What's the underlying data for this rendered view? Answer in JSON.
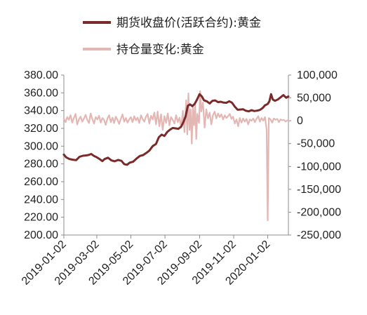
{
  "chart_data": {
    "type": "line",
    "legend_position": "top",
    "grid": false,
    "series": [
      {
        "name": "期货收盘价(活跃合约):黄金",
        "axis": "left",
        "color": "#7b2a2a",
        "points": [
          [
            "2019-01-02",
            290.5
          ],
          [
            "2019-01-06",
            287.5
          ],
          [
            "2019-01-12",
            285.5
          ],
          [
            "2019-01-18",
            284.8
          ],
          [
            "2019-01-24",
            284.2
          ],
          [
            "2019-01-30",
            288.0
          ],
          [
            "2019-02-05",
            289.2
          ],
          [
            "2019-02-10",
            289.5
          ],
          [
            "2019-02-15",
            290.0
          ],
          [
            "2019-02-20",
            291.2
          ],
          [
            "2019-02-25",
            289.0
          ],
          [
            "2019-03-02",
            287.5
          ],
          [
            "2019-03-08",
            285.0
          ],
          [
            "2019-03-12",
            283.2
          ],
          [
            "2019-03-16",
            285.5
          ],
          [
            "2019-03-22",
            287.0
          ],
          [
            "2019-03-28",
            284.0
          ],
          [
            "2019-04-03",
            283.0
          ],
          [
            "2019-04-09",
            284.5
          ],
          [
            "2019-04-15",
            283.5
          ],
          [
            "2019-04-20",
            279.8
          ],
          [
            "2019-04-25",
            279.0
          ],
          [
            "2019-04-30",
            281.5
          ],
          [
            "2019-05-06",
            282.5
          ],
          [
            "2019-05-12",
            286.0
          ],
          [
            "2019-05-18",
            289.0
          ],
          [
            "2019-05-24",
            290.0
          ],
          [
            "2019-05-30",
            292.5
          ],
          [
            "2019-06-04",
            295.0
          ],
          [
            "2019-06-10",
            300.0
          ],
          [
            "2019-06-16",
            302.5
          ],
          [
            "2019-06-21",
            310.0
          ],
          [
            "2019-06-26",
            313.0
          ],
          [
            "2019-07-01",
            311.5
          ],
          [
            "2019-07-06",
            316.0
          ],
          [
            "2019-07-11",
            318.5
          ],
          [
            "2019-07-16",
            320.5
          ],
          [
            "2019-07-21",
            320.0
          ],
          [
            "2019-07-26",
            319.5
          ],
          [
            "2019-07-31",
            322.0
          ],
          [
            "2019-08-04",
            327.0
          ],
          [
            "2019-08-08",
            333.5
          ],
          [
            "2019-08-12",
            345.5
          ],
          [
            "2019-08-16",
            347.0
          ],
          [
            "2019-08-20",
            345.0
          ],
          [
            "2019-08-24",
            347.5
          ],
          [
            "2019-08-28",
            352.0
          ],
          [
            "2019-09-02",
            358.5
          ],
          [
            "2019-09-06",
            356.0
          ],
          [
            "2019-09-10",
            351.5
          ],
          [
            "2019-09-15",
            350.5
          ],
          [
            "2019-09-20",
            348.0
          ],
          [
            "2019-09-25",
            351.0
          ],
          [
            "2019-09-30",
            351.5
          ],
          [
            "2019-10-05",
            349.5
          ],
          [
            "2019-10-10",
            350.0
          ],
          [
            "2019-10-15",
            349.0
          ],
          [
            "2019-10-20",
            348.8
          ],
          [
            "2019-10-25",
            350.5
          ],
          [
            "2019-10-30",
            349.0
          ],
          [
            "2019-11-04",
            344.5
          ],
          [
            "2019-11-09",
            341.0
          ],
          [
            "2019-11-14",
            341.2
          ],
          [
            "2019-11-19",
            341.5
          ],
          [
            "2019-11-24",
            339.8
          ],
          [
            "2019-11-29",
            339.2
          ],
          [
            "2019-12-04",
            340.5
          ],
          [
            "2019-12-09",
            339.5
          ],
          [
            "2019-12-14",
            340.0
          ],
          [
            "2019-12-19",
            340.8
          ],
          [
            "2019-12-24",
            343.0
          ],
          [
            "2019-12-28",
            346.0
          ],
          [
            "2020-01-02",
            347.5
          ],
          [
            "2020-01-05",
            350.5
          ],
          [
            "2020-01-08",
            358.5
          ],
          [
            "2020-01-11",
            352.5
          ],
          [
            "2020-01-15",
            351.0
          ],
          [
            "2020-01-20",
            352.5
          ],
          [
            "2020-01-25",
            355.0
          ],
          [
            "2020-01-30",
            357.5
          ],
          [
            "2020-02-04",
            354.5
          ],
          [
            "2020-02-08",
            356.0
          ]
        ]
      },
      {
        "name": "持仓量变化:黄金",
        "axis": "right",
        "color": "#e3b7b4",
        "points": [
          [
            "2019-01-02",
            5000
          ],
          [
            "2019-01-05",
            -3000
          ],
          [
            "2019-01-08",
            8000
          ],
          [
            "2019-01-11",
            2000
          ],
          [
            "2019-01-14",
            12000
          ],
          [
            "2019-01-17",
            -4000
          ],
          [
            "2019-01-20",
            6000
          ],
          [
            "2019-01-23",
            15000
          ],
          [
            "2019-01-26",
            -8000
          ],
          [
            "2019-01-29",
            3000
          ],
          [
            "2019-02-01",
            9000
          ],
          [
            "2019-02-04",
            -2000
          ],
          [
            "2019-02-07",
            5000
          ],
          [
            "2019-02-10",
            13000
          ],
          [
            "2019-02-13",
            2000
          ],
          [
            "2019-02-16",
            -5000
          ],
          [
            "2019-02-19",
            16000
          ],
          [
            "2019-02-22",
            4000
          ],
          [
            "2019-02-25",
            -6000
          ],
          [
            "2019-02-28",
            8000
          ],
          [
            "2019-03-03",
            3000
          ],
          [
            "2019-03-06",
            11000
          ],
          [
            "2019-03-09",
            -4000
          ],
          [
            "2019-03-12",
            6000
          ],
          [
            "2019-03-15",
            2000
          ],
          [
            "2019-03-18",
            -9000
          ],
          [
            "2019-03-21",
            5000
          ],
          [
            "2019-03-24",
            12000
          ],
          [
            "2019-03-27",
            -3000
          ],
          [
            "2019-03-30",
            7000
          ],
          [
            "2019-04-02",
            -5000
          ],
          [
            "2019-04-05",
            9000
          ],
          [
            "2019-04-08",
            2000
          ],
          [
            "2019-04-11",
            -7000
          ],
          [
            "2019-04-14",
            4000
          ],
          [
            "2019-04-17",
            14000
          ],
          [
            "2019-04-20",
            -2000
          ],
          [
            "2019-04-23",
            6000
          ],
          [
            "2019-04-26",
            -4000
          ],
          [
            "2019-04-29",
            3000
          ],
          [
            "2019-05-02",
            8000
          ],
          [
            "2019-05-05",
            -3000
          ],
          [
            "2019-05-08",
            10000
          ],
          [
            "2019-05-11",
            1000
          ],
          [
            "2019-05-14",
            7000
          ],
          [
            "2019-05-17",
            -5000
          ],
          [
            "2019-05-20",
            12000
          ],
          [
            "2019-05-23",
            4000
          ],
          [
            "2019-05-26",
            -2000
          ],
          [
            "2019-05-29",
            9000
          ],
          [
            "2019-06-01",
            15000
          ],
          [
            "2019-06-04",
            -6000
          ],
          [
            "2019-06-07",
            11000
          ],
          [
            "2019-06-10",
            3000
          ],
          [
            "2019-06-13",
            18000
          ],
          [
            "2019-06-16",
            -8000
          ],
          [
            "2019-06-19",
            20000
          ],
          [
            "2019-06-22",
            -12000
          ],
          [
            "2019-06-25",
            14000
          ],
          [
            "2019-06-28",
            -20000
          ],
          [
            "2019-07-01",
            10000
          ],
          [
            "2019-07-04",
            -5000
          ],
          [
            "2019-07-07",
            16000
          ],
          [
            "2019-07-10",
            -10000
          ],
          [
            "2019-07-13",
            8000
          ],
          [
            "2019-07-16",
            2000
          ],
          [
            "2019-07-19",
            -6000
          ],
          [
            "2019-07-22",
            12000
          ],
          [
            "2019-07-25",
            -3000
          ],
          [
            "2019-07-28",
            7000
          ],
          [
            "2019-07-31",
            -15000
          ],
          [
            "2019-08-03",
            22000
          ],
          [
            "2019-08-06",
            -25000
          ],
          [
            "2019-08-09",
            45000
          ],
          [
            "2019-08-11",
            -30000
          ],
          [
            "2019-08-13",
            60000
          ],
          [
            "2019-08-15",
            -20000
          ],
          [
            "2019-08-17",
            25000
          ],
          [
            "2019-08-19",
            -50000
          ],
          [
            "2019-08-21",
            30000
          ],
          [
            "2019-08-23",
            -10000
          ],
          [
            "2019-08-25",
            35000
          ],
          [
            "2019-08-27",
            -40000
          ],
          [
            "2019-08-29",
            15000
          ],
          [
            "2019-09-01",
            -5000
          ],
          [
            "2019-09-03",
            65000
          ],
          [
            "2019-09-05",
            20000
          ],
          [
            "2019-09-08",
            40000
          ],
          [
            "2019-09-11",
            -15000
          ],
          [
            "2019-09-14",
            25000
          ],
          [
            "2019-09-17",
            5000
          ],
          [
            "2019-09-20",
            18000
          ],
          [
            "2019-09-23",
            -8000
          ],
          [
            "2019-09-26",
            12000
          ],
          [
            "2019-09-29",
            20000
          ],
          [
            "2019-10-02",
            5000
          ],
          [
            "2019-10-05",
            16000
          ],
          [
            "2019-10-08",
            8000
          ],
          [
            "2019-10-11",
            14000
          ],
          [
            "2019-10-14",
            3000
          ],
          [
            "2019-10-17",
            12000
          ],
          [
            "2019-10-20",
            6000
          ],
          [
            "2019-10-23",
            10000
          ],
          [
            "2019-10-26",
            15000
          ],
          [
            "2019-10-29",
            4000
          ],
          [
            "2019-11-01",
            9000
          ],
          [
            "2019-11-04",
            -6000
          ],
          [
            "2019-11-07",
            3000
          ],
          [
            "2019-11-10",
            -12000
          ],
          [
            "2019-11-13",
            6000
          ],
          [
            "2019-11-16",
            -4000
          ],
          [
            "2019-11-19",
            5000
          ],
          [
            "2019-11-22",
            -2000
          ],
          [
            "2019-11-25",
            4000
          ],
          [
            "2019-11-28",
            -8000
          ],
          [
            "2019-12-01",
            3000
          ],
          [
            "2019-12-04",
            0
          ],
          [
            "2019-12-07",
            5000
          ],
          [
            "2019-12-10",
            -3000
          ],
          [
            "2019-12-13",
            4000
          ],
          [
            "2019-12-16",
            10000
          ],
          [
            "2019-12-19",
            -2000
          ],
          [
            "2019-12-22",
            6000
          ],
          [
            "2019-12-25",
            0
          ],
          [
            "2019-12-28",
            8000
          ],
          [
            "2019-12-31",
            -20000
          ],
          [
            "2020-01-02",
            -218000
          ],
          [
            "2020-01-04",
            6000
          ],
          [
            "2020-01-07",
            3000
          ],
          [
            "2020-01-10",
            -4000
          ],
          [
            "2020-01-13",
            5000
          ],
          [
            "2020-01-16",
            2000
          ],
          [
            "2020-01-19",
            4000
          ],
          [
            "2020-01-22",
            -3000
          ],
          [
            "2020-01-25",
            3000
          ],
          [
            "2020-01-28",
            1000
          ],
          [
            "2020-01-31",
            2000
          ],
          [
            "2020-02-03",
            -2000
          ],
          [
            "2020-02-06",
            1000
          ],
          [
            "2020-02-08",
            1000
          ]
        ]
      }
    ],
    "y_left": {
      "min": 200,
      "max": 380,
      "ticks": [
        "380.00",
        "360.00",
        "340.00",
        "320.00",
        "300.00",
        "280.00",
        "260.00",
        "240.00",
        "220.00",
        "200.00"
      ]
    },
    "y_right": {
      "min": -250000,
      "max": 100000,
      "ticks": [
        "100,000",
        "50,000",
        "0",
        "-50,000",
        "-100,000",
        "-150,000",
        "-200,000",
        "-250,000"
      ]
    },
    "x_axis": {
      "start": "2019-01-02",
      "end": "2020-02-08",
      "ticks": [
        "2019-01-02",
        "2019-03-02",
        "2019-05-02",
        "2019-07-02",
        "2019-09-02",
        "2019-11-02",
        "2020-01-02"
      ]
    }
  }
}
